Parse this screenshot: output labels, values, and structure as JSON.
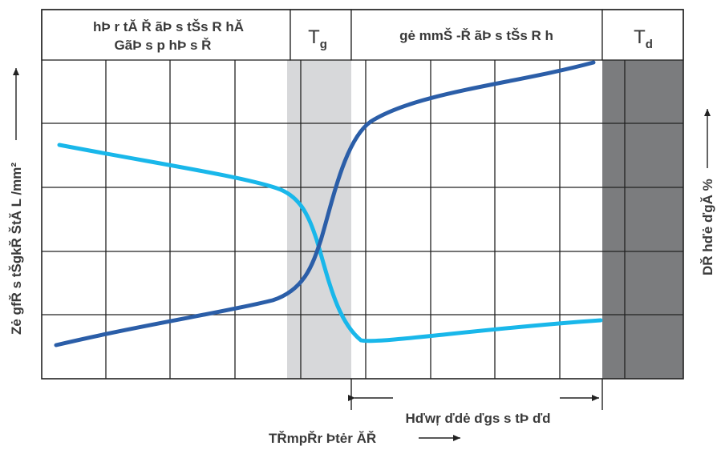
{
  "header": {
    "left_line1": "hÞ r  tĂ Ř ãÞ s tŠs R hĂ",
    "left_line2": "GãÞ s p hÞ s Ř",
    "tg_main": "T",
    "tg_sub": "g",
    "right": "gė mmŠ -Ř ãÞ s tŠs R h",
    "td_main": "T",
    "td_sub": "d"
  },
  "axes": {
    "left": "Zė gfŘ s tŠgkŘ ŠtĂ L /mm²",
    "right": "DŘ hďė ďgĂ %",
    "bottom": "TŘmpŘr Þtėr ĂŘ"
  },
  "range_label": "Hďwŗ ďdė ďgs s tÞ ďd",
  "colors": {
    "dark_curve": "#2b5ea8",
    "light_curve": "#19b7ea",
    "tg_band": "#d7d8da",
    "td_band": "#7b7c7e",
    "grid": "#222222"
  }
}
